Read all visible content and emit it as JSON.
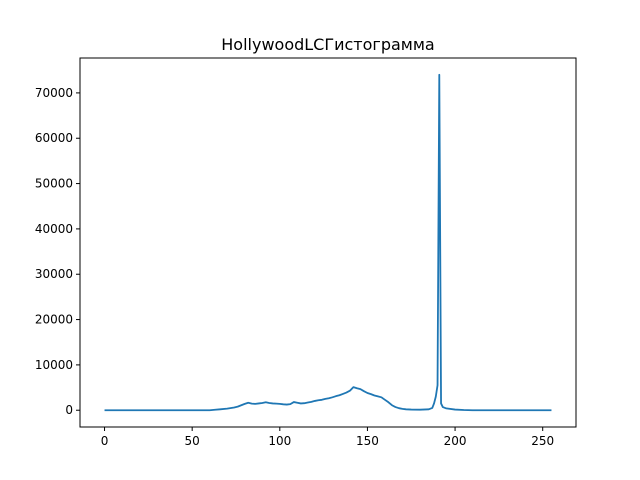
{
  "chart_data": {
    "type": "line",
    "title": "HollywoodLCГистограмма",
    "xlabel": "",
    "ylabel": "",
    "xlim": [
      -14,
      269
    ],
    "ylim": [
      -3700,
      77700
    ],
    "x_ticks": [
      0,
      50,
      100,
      150,
      200,
      250
    ],
    "y_ticks": [
      0,
      10000,
      20000,
      30000,
      40000,
      50000,
      60000,
      70000
    ],
    "x_tick_labels": [
      "0",
      "50",
      "100",
      "150",
      "200",
      "250"
    ],
    "y_tick_labels": [
      "0",
      "10000",
      "20000",
      "30000",
      "40000",
      "50000",
      "60000",
      "70000"
    ],
    "grid": false,
    "series": [
      {
        "color": "#1f77b4",
        "points": [
          [
            0,
            0
          ],
          [
            10,
            0
          ],
          [
            20,
            0
          ],
          [
            30,
            0
          ],
          [
            40,
            0
          ],
          [
            50,
            0
          ],
          [
            60,
            0
          ],
          [
            63,
            100
          ],
          [
            66,
            200
          ],
          [
            70,
            350
          ],
          [
            74,
            600
          ],
          [
            76,
            800
          ],
          [
            78,
            1100
          ],
          [
            80,
            1400
          ],
          [
            82,
            1650
          ],
          [
            84,
            1450
          ],
          [
            86,
            1400
          ],
          [
            88,
            1500
          ],
          [
            90,
            1600
          ],
          [
            92,
            1750
          ],
          [
            94,
            1600
          ],
          [
            96,
            1500
          ],
          [
            98,
            1450
          ],
          [
            100,
            1400
          ],
          [
            102,
            1300
          ],
          [
            104,
            1250
          ],
          [
            106,
            1350
          ],
          [
            108,
            1800
          ],
          [
            110,
            1650
          ],
          [
            112,
            1500
          ],
          [
            114,
            1550
          ],
          [
            116,
            1700
          ],
          [
            118,
            1850
          ],
          [
            120,
            2050
          ],
          [
            122,
            2200
          ],
          [
            124,
            2300
          ],
          [
            126,
            2500
          ],
          [
            128,
            2650
          ],
          [
            130,
            2850
          ],
          [
            132,
            3100
          ],
          [
            134,
            3300
          ],
          [
            136,
            3600
          ],
          [
            138,
            3900
          ],
          [
            140,
            4300
          ],
          [
            142,
            5100
          ],
          [
            144,
            4850
          ],
          [
            146,
            4650
          ],
          [
            148,
            4200
          ],
          [
            150,
            3800
          ],
          [
            152,
            3550
          ],
          [
            154,
            3250
          ],
          [
            156,
            3050
          ],
          [
            158,
            2850
          ],
          [
            160,
            2300
          ],
          [
            162,
            1750
          ],
          [
            164,
            1100
          ],
          [
            166,
            700
          ],
          [
            168,
            450
          ],
          [
            170,
            300
          ],
          [
            172,
            200
          ],
          [
            175,
            150
          ],
          [
            180,
            120
          ],
          [
            185,
            200
          ],
          [
            187,
            500
          ],
          [
            188,
            1500
          ],
          [
            189,
            3000
          ],
          [
            190,
            5500
          ],
          [
            191,
            74000
          ],
          [
            192,
            1500
          ],
          [
            193,
            700
          ],
          [
            195,
            400
          ],
          [
            200,
            150
          ],
          [
            205,
            50
          ],
          [
            210,
            0
          ],
          [
            220,
            0
          ],
          [
            230,
            0
          ],
          [
            240,
            0
          ],
          [
            250,
            0
          ],
          [
            255,
            0
          ]
        ]
      }
    ]
  }
}
